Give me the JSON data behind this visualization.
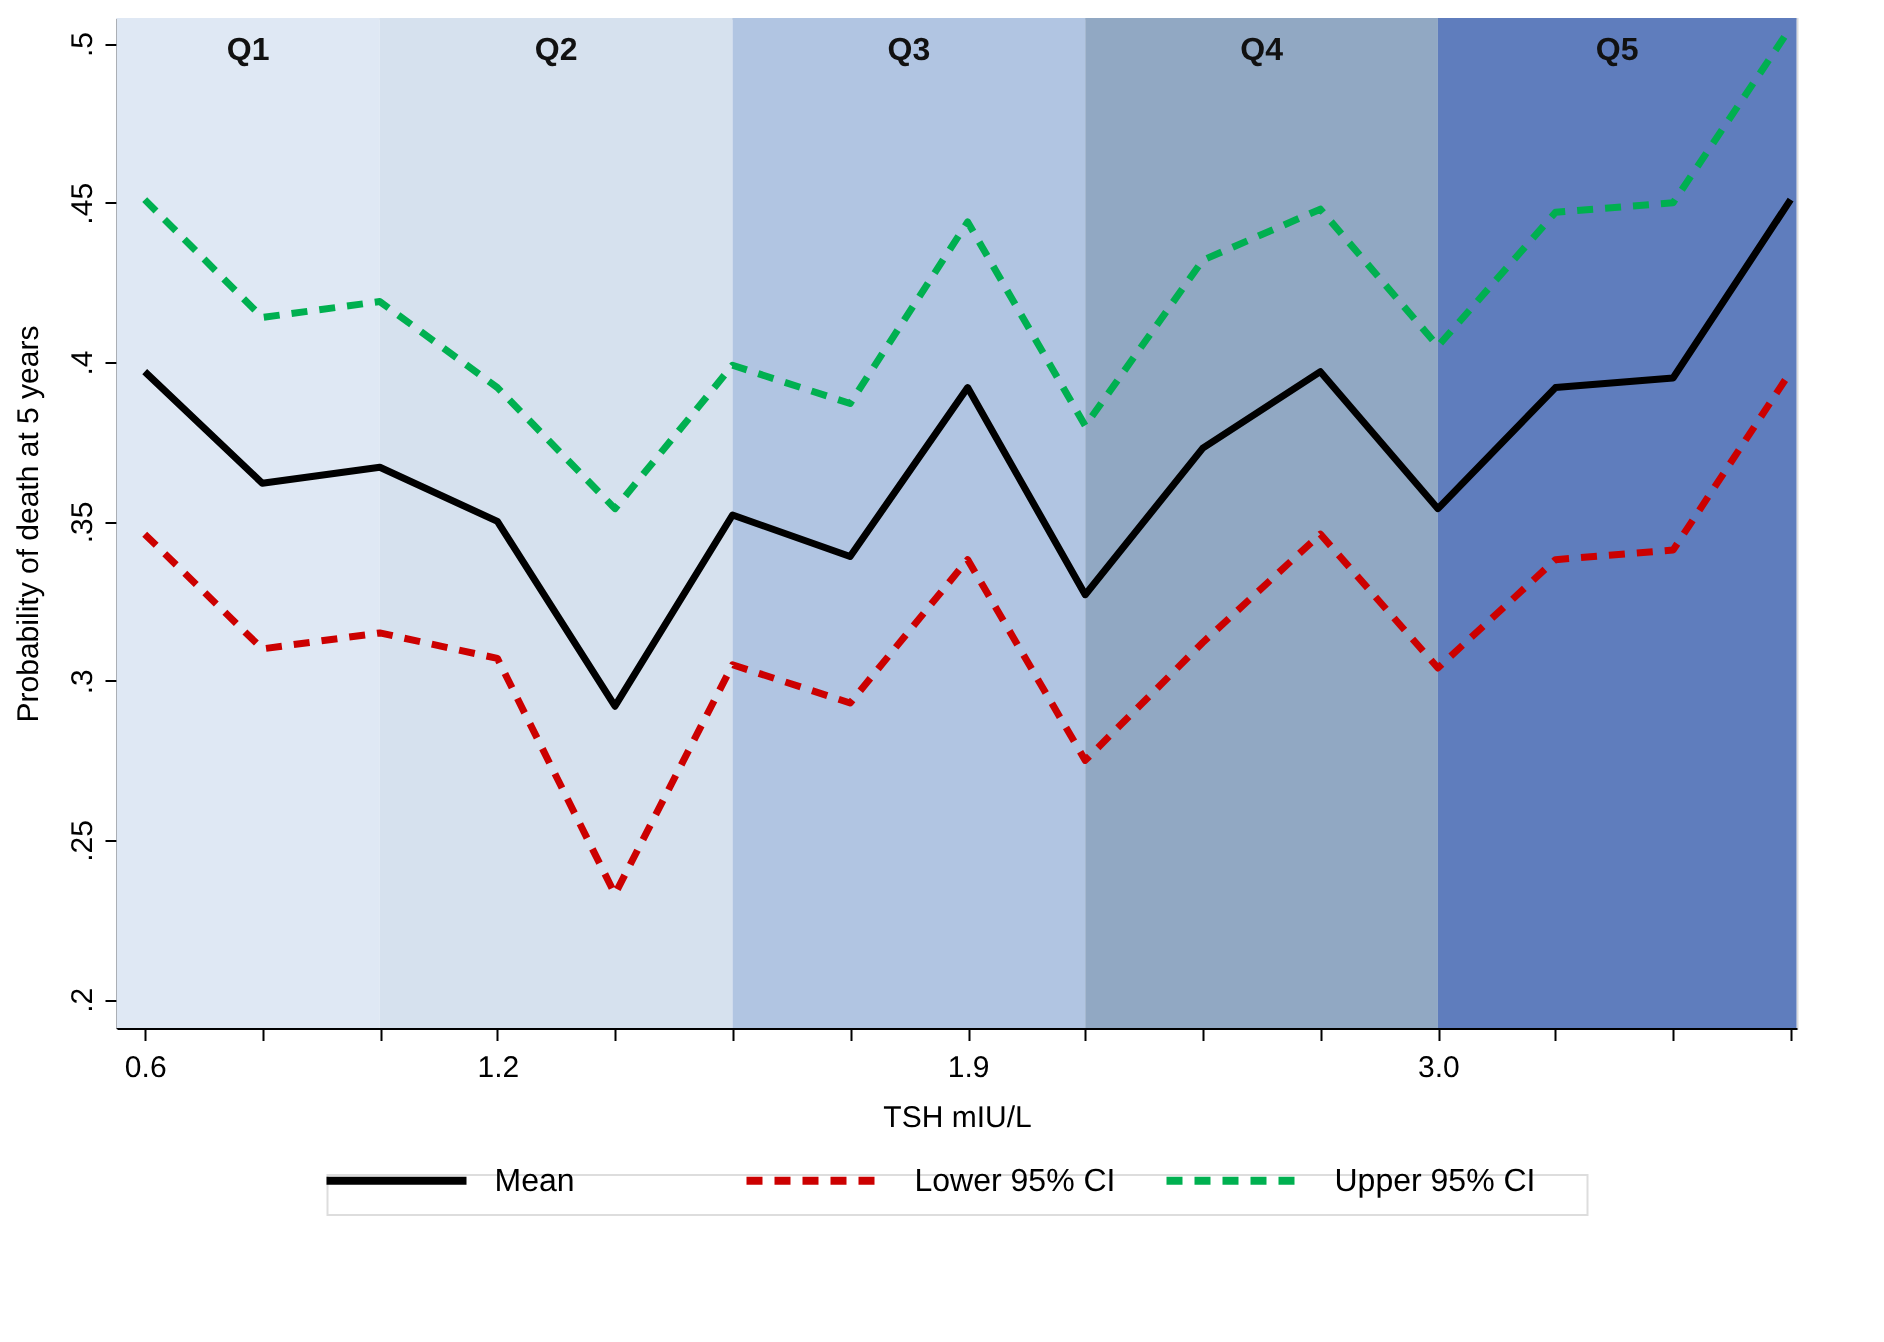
{
  "chart_data": {
    "type": "line",
    "xlabel": "TSH mIU/L",
    "ylabel": "Probability of death at 5 years",
    "categories": [
      "0.6",
      null,
      null,
      "1.2",
      null,
      null,
      null,
      "1.9",
      null,
      null,
      null,
      "3.0",
      null,
      null,
      null
    ],
    "ylim": [
      0.191,
      0.508
    ],
    "yticks": [
      {
        "value": 0.2,
        "label": ".2"
      },
      {
        "value": 0.25,
        "label": ".25"
      },
      {
        "value": 0.3,
        "label": ".3"
      },
      {
        "value": 0.35,
        "label": ".35"
      },
      {
        "value": 0.4,
        "label": ".4"
      },
      {
        "value": 0.45,
        "label": ".45"
      },
      {
        "value": 0.5,
        "label": ".5"
      }
    ],
    "series": [
      {
        "name": "Mean",
        "color": "#000000",
        "line_style": "solid",
        "values": [
          0.397,
          0.362,
          0.367,
          0.35,
          0.292,
          0.352,
          0.339,
          0.392,
          0.327,
          0.373,
          0.397,
          0.354,
          0.392,
          0.395,
          0.451
        ]
      },
      {
        "name": "Lower 95% CI",
        "color": "#cc0000",
        "line_style": "dashed",
        "values": [
          0.346,
          0.31,
          0.315,
          0.307,
          0.233,
          0.305,
          0.293,
          0.338,
          0.275,
          0.312,
          0.346,
          0.304,
          0.338,
          0.341,
          0.397
        ]
      },
      {
        "name": "Upper 95% CI",
        "color": "#00b050",
        "line_style": "dashed",
        "values": [
          0.451,
          0.414,
          0.419,
          0.392,
          0.354,
          0.399,
          0.387,
          0.444,
          0.38,
          0.432,
          0.448,
          0.405,
          0.447,
          0.45,
          0.505
        ]
      }
    ],
    "annotations": [
      "Q1",
      "Q2",
      "Q3",
      "Q4",
      "Q5"
    ],
    "grid": false,
    "legend": "bottom"
  }
}
